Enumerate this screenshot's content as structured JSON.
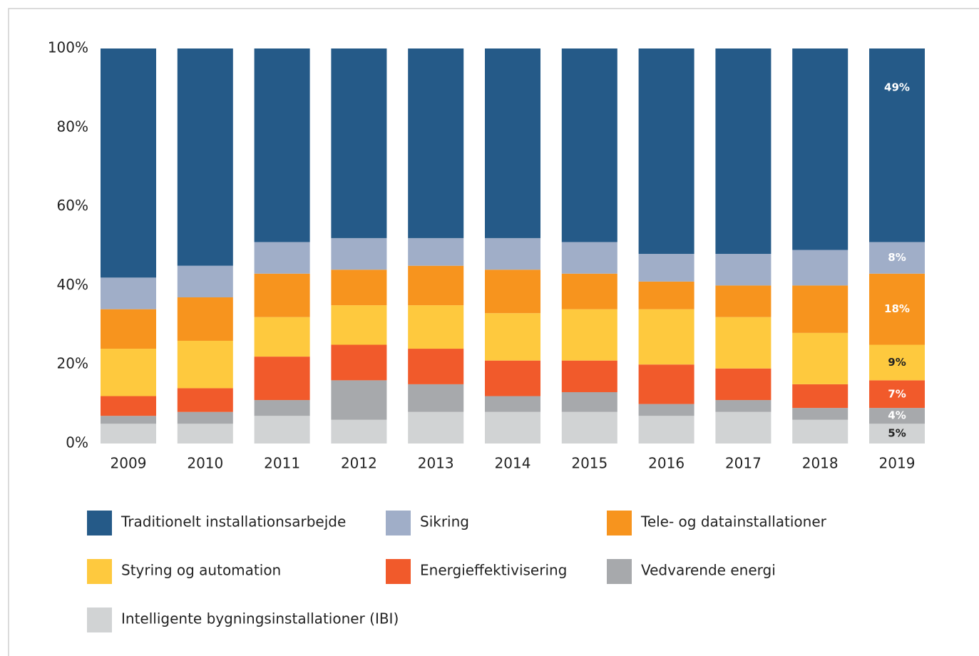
{
  "chart_data": {
    "type": "stacked_bar",
    "categories": [
      "2009",
      "2010",
      "2011",
      "2012",
      "2013",
      "2014",
      "2015",
      "2016",
      "2017",
      "2018",
      "2019"
    ],
    "series": [
      {
        "name": "Intelligente bygningsinstallationer (IBI)",
        "color": "#d1d3d4",
        "values": [
          5,
          5,
          7,
          6,
          8,
          8,
          8,
          7,
          8,
          6,
          5
        ],
        "value_labels": [
          null,
          null,
          null,
          null,
          null,
          null,
          null,
          null,
          null,
          null,
          "5%"
        ]
      },
      {
        "name": "Vedvarende energi",
        "color": "#a7a9ac",
        "values": [
          2,
          3,
          4,
          10,
          7,
          4,
          5,
          3,
          3,
          3,
          4
        ],
        "value_labels": [
          null,
          null,
          null,
          null,
          null,
          null,
          null,
          null,
          null,
          null,
          "4%"
        ]
      },
      {
        "name": "Energieffektivisering",
        "color": "#f15a2b",
        "values": [
          5,
          6,
          11,
          9,
          9,
          9,
          8,
          10,
          8,
          6,
          7
        ],
        "value_labels": [
          null,
          null,
          null,
          null,
          null,
          null,
          null,
          null,
          null,
          null,
          "7%"
        ]
      },
      {
        "name": "Styring og automation",
        "color": "#fec93e",
        "values": [
          12,
          12,
          10,
          10,
          11,
          12,
          13,
          14,
          13,
          13,
          9
        ],
        "value_labels": [
          null,
          null,
          null,
          null,
          null,
          null,
          null,
          null,
          null,
          null,
          "9%"
        ]
      },
      {
        "name": "Tele- og datainstallationer",
        "color": "#f7941e",
        "values": [
          10,
          11,
          11,
          9,
          10,
          11,
          9,
          7,
          8,
          12,
          18
        ],
        "value_labels": [
          null,
          null,
          null,
          null,
          null,
          null,
          null,
          null,
          null,
          null,
          "18%"
        ]
      },
      {
        "name": "Sikring",
        "color": "#a0aec8",
        "values": [
          8,
          8,
          8,
          8,
          7,
          8,
          8,
          7,
          8,
          9,
          8
        ],
        "value_labels": [
          null,
          null,
          null,
          null,
          null,
          null,
          null,
          null,
          null,
          null,
          "8%"
        ]
      },
      {
        "name": "Traditionelt installationsarbejde",
        "color": "#255a88",
        "values": [
          58,
          55,
          49,
          48,
          48,
          48,
          49,
          52,
          52,
          51,
          49
        ],
        "value_labels": [
          null,
          null,
          null,
          null,
          null,
          null,
          null,
          null,
          null,
          null,
          "49%"
        ]
      }
    ],
    "ylim": [
      0,
      100
    ],
    "yticks": [
      {
        "value": 0,
        "label": "0%"
      },
      {
        "value": 20,
        "label": "20%"
      },
      {
        "value": 40,
        "label": "40%"
      },
      {
        "value": 60,
        "label": "60%"
      },
      {
        "value": 80,
        "label": "80%"
      },
      {
        "value": 100,
        "label": "100%"
      }
    ],
    "legend_order": [
      6,
      5,
      4,
      3,
      2,
      1,
      0
    ]
  }
}
